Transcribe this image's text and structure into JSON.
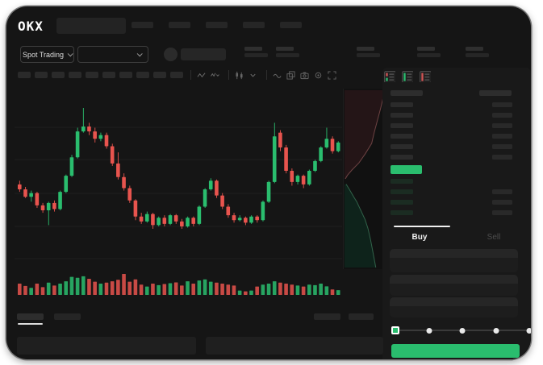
{
  "colors": {
    "candle_up": "#2abd6e",
    "candle_down": "#e8544e",
    "last_price_bg": "#2abd6e",
    "buy_button_bg": "#2abd6e",
    "depth_ask_fill": "#241517",
    "depth_ask_line": "#b06a6a",
    "depth_bid_fill": "#0e231b",
    "depth_bid_line": "#4f9f74"
  },
  "header": {
    "logo": "OKX",
    "nav_placeholders": 5,
    "market_dropdown_label": "Spot Trading",
    "stat_placeholders": 5
  },
  "toolbar": {
    "timeframe_placeholders": 10,
    "icon_groups": [
      [
        "indicator-wave-icon",
        "indicator-dropdown-icon"
      ],
      [
        "candle-type-icon",
        "chevron-down-icon"
      ],
      [
        "line-wave-icon",
        "compare-icon",
        "camera-icon",
        "settings-gear-icon",
        "fullscreen-icon"
      ]
    ]
  },
  "order_book": {
    "view_icons": [
      "book-both-icon",
      "book-bids-icon",
      "book-asks-icon"
    ],
    "ask_rows": 6,
    "bid_rows": 4
  },
  "trade_panel": {
    "buy_tab_label": "Buy",
    "sell_tab_label": "Sell",
    "input_fields": 3,
    "slider_stops": 5
  },
  "chart_data": [
    {
      "type": "candlestick",
      "title": "",
      "xlabel": "",
      "ylabel": "",
      "grid": true,
      "candles": [
        [
          57,
          58.5,
          54,
          55
        ],
        [
          55,
          56,
          51.5,
          52
        ],
        [
          52,
          54.5,
          50,
          53.5
        ],
        [
          53.5,
          54,
          47.5,
          48.5
        ],
        [
          48.5,
          49.5,
          45.5,
          46.5
        ],
        [
          46.5,
          50,
          40.5,
          49.5
        ],
        [
          49.5,
          50.5,
          46,
          47
        ],
        [
          47,
          54.5,
          46.5,
          54
        ],
        [
          54,
          61,
          53.5,
          60.5
        ],
        [
          60.5,
          69,
          60,
          68
        ],
        [
          68,
          80,
          67.5,
          78.5
        ],
        [
          78.5,
          88,
          78,
          80.5
        ],
        [
          80.5,
          82,
          77,
          78.5
        ],
        [
          78.5,
          80,
          74,
          75.5
        ],
        [
          75.5,
          78,
          74.5,
          77
        ],
        [
          77,
          78,
          71.5,
          72.5
        ],
        [
          72.5,
          73.5,
          64.5,
          65.5
        ],
        [
          65.5,
          70,
          59,
          60
        ],
        [
          60,
          61.5,
          54.5,
          55.5
        ],
        [
          55.5,
          56.5,
          49.5,
          50.5
        ],
        [
          50.5,
          51,
          42.5,
          44
        ],
        [
          44,
          45.5,
          41,
          42
        ],
        [
          42,
          46,
          41.5,
          45
        ],
        [
          45,
          45.5,
          39,
          40.5
        ],
        [
          40.5,
          44,
          40,
          43.5
        ],
        [
          43.5,
          44.5,
          40,
          41
        ],
        [
          41,
          45,
          40.5,
          44.5
        ],
        [
          44.5,
          45,
          41,
          42
        ],
        [
          42,
          43,
          39,
          40
        ],
        [
          40,
          44,
          39.5,
          43.5
        ],
        [
          43.5,
          44,
          40,
          41
        ],
        [
          41,
          48.5,
          40.5,
          48
        ],
        [
          48,
          55.5,
          47.5,
          55
        ],
        [
          55,
          59.5,
          54.5,
          58.5
        ],
        [
          58.5,
          59,
          51.5,
          52.5
        ],
        [
          52.5,
          53.5,
          47,
          48
        ],
        [
          48,
          49,
          43.5,
          44.5
        ],
        [
          44.5,
          45.5,
          41.5,
          42.5
        ],
        [
          42.5,
          44.5,
          42,
          43.5
        ],
        [
          43.5,
          44,
          40.5,
          41.5
        ],
        [
          41.5,
          44.5,
          41,
          44
        ],
        [
          44,
          44.5,
          41.5,
          42.5
        ],
        [
          42.5,
          50.5,
          42,
          50
        ],
        [
          50,
          58.5,
          49.5,
          58
        ],
        [
          58,
          82,
          57.5,
          76.5
        ],
        [
          78,
          79,
          70.5,
          72
        ],
        [
          72,
          73,
          61.5,
          62.5
        ],
        [
          62.5,
          63.5,
          56.5,
          58
        ],
        [
          58,
          61,
          57,
          60.5
        ],
        [
          60.5,
          61,
          55.5,
          57
        ],
        [
          57,
          63,
          56.5,
          62.5
        ],
        [
          62.5,
          67,
          62,
          66.5
        ],
        [
          66.5,
          72.5,
          66,
          72
        ],
        [
          72,
          80,
          71.5,
          75.5
        ],
        [
          75.5,
          76.5,
          69.5,
          70.5
        ],
        [
          70.5,
          74.5,
          70,
          74
        ]
      ],
      "volumes": [
        0.5,
        0.38,
        0.28,
        0.5,
        0.32,
        0.55,
        0.4,
        0.5,
        0.62,
        0.85,
        0.8,
        0.88,
        0.75,
        0.6,
        0.5,
        0.55,
        0.62,
        0.7,
        1.0,
        0.6,
        0.72,
        0.45,
        0.35,
        0.5,
        0.42,
        0.48,
        0.52,
        0.56,
        0.4,
        0.62,
        0.5,
        0.66,
        0.72,
        0.6,
        0.55,
        0.5,
        0.45,
        0.4,
        0.14,
        0.1,
        0.14,
        0.35,
        0.45,
        0.5,
        0.62,
        0.55,
        0.5,
        0.45,
        0.4,
        0.35,
        0.45,
        0.42,
        0.5,
        0.36,
        0.2,
        0.16
      ]
    },
    {
      "type": "area",
      "name": "depth",
      "asks": [
        [
          1,
          0.02
        ],
        [
          0.93,
          0.05
        ],
        [
          0.88,
          0.1
        ],
        [
          0.8,
          0.17
        ],
        [
          0.72,
          0.24
        ],
        [
          0.66,
          0.3
        ],
        [
          0.5,
          0.36
        ],
        [
          0.35,
          0.41
        ],
        [
          0.18,
          0.45
        ],
        [
          0.07,
          0.48
        ],
        [
          0.02,
          0.5
        ]
      ],
      "bids": [
        [
          0.04,
          0.53
        ],
        [
          0.12,
          0.56
        ],
        [
          0.22,
          0.6
        ],
        [
          0.3,
          0.63
        ],
        [
          0.4,
          0.68
        ],
        [
          0.5,
          0.73
        ],
        [
          0.57,
          0.78
        ],
        [
          0.63,
          0.84
        ],
        [
          0.68,
          0.9
        ],
        [
          0.72,
          0.95
        ],
        [
          0.76,
          1.0
        ]
      ]
    }
  ]
}
